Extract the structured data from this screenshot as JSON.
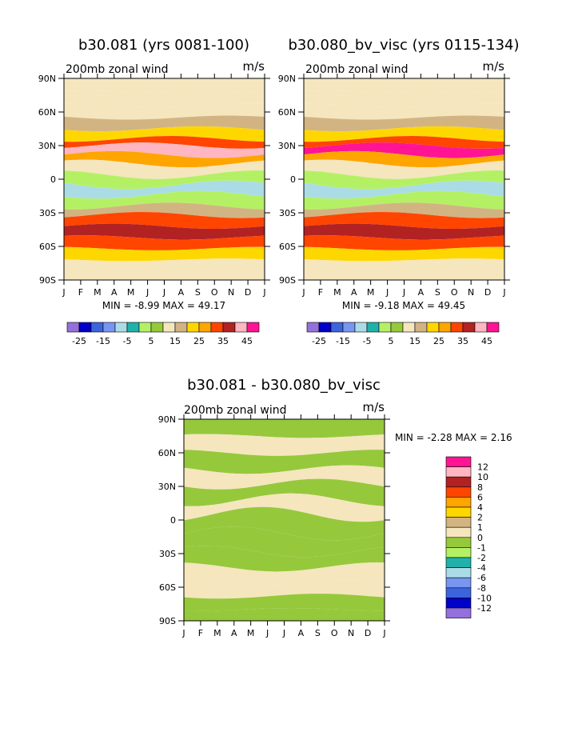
{
  "page": {
    "colors": {
      "background": "#ffffff",
      "axis": "#000000"
    }
  },
  "chart_data": [
    {
      "type": "filled-contour",
      "id": "panel1",
      "title": "b30.081 (yrs 0081-100)",
      "subtitle": "200mb zonal wind",
      "units": "m/s",
      "stats": "MIN =   -8.99 MAX =   49.17",
      "x_ticks": [
        "J",
        "F",
        "M",
        "A",
        "M",
        "J",
        "J",
        "A",
        "S",
        "O",
        "N",
        "D",
        "J"
      ],
      "y_ticks": [
        "90N",
        "60N",
        "30N",
        "0",
        "30S",
        "60S",
        "90S"
      ],
      "ylim": [
        -90,
        90
      ],
      "colorbar_labels": [
        "-25",
        "-15",
        "-5",
        "5",
        "15",
        "25",
        "35",
        "45"
      ],
      "colorbar_colors": [
        "#9370db",
        "#0000c8",
        "#3c64dc",
        "#7896f0",
        "#aadce6",
        "#20b2aa",
        "#b4f064",
        "#96c83c",
        "#f5e6be",
        "#d2b482",
        "#ffd700",
        "#ffa500",
        "#ff4500",
        "#b22222",
        "#ffb6c1",
        "#ff1493"
      ],
      "bands": [
        {
          "lat": 90,
          "value": 10
        },
        {
          "lat": 78,
          "value": 14
        },
        {
          "lat": 66,
          "value": 10
        },
        {
          "lat": 55,
          "value": 18
        },
        {
          "lat": 45,
          "value": 22
        },
        {
          "lat": 36,
          "value": 30
        },
        {
          "lat": 30,
          "value": 44
        },
        {
          "lat": 22,
          "value": 28
        },
        {
          "lat": 14,
          "value": 12
        },
        {
          "lat": 4,
          "value": 2
        },
        {
          "lat": -5,
          "value": -6
        },
        {
          "lat": -14,
          "value": 4
        },
        {
          "lat": -24,
          "value": 18
        },
        {
          "lat": -32,
          "value": 34
        },
        {
          "lat": -42,
          "value": 38
        },
        {
          "lat": -52,
          "value": 30
        },
        {
          "lat": -62,
          "value": 20
        },
        {
          "lat": -72,
          "value": 12
        },
        {
          "lat": -90,
          "value": 6
        }
      ]
    },
    {
      "type": "filled-contour",
      "id": "panel2",
      "title": "b30.080_bv_visc (yrs 0115-134)",
      "subtitle": "200mb zonal wind",
      "units": "m/s",
      "stats": "MIN =   -9.18 MAX =   49.45",
      "x_ticks": [
        "J",
        "F",
        "M",
        "A",
        "M",
        "J",
        "J",
        "A",
        "S",
        "O",
        "N",
        "D",
        "J"
      ],
      "y_ticks": [
        "90N",
        "60N",
        "30N",
        "0",
        "30S",
        "60S",
        "90S"
      ],
      "ylim": [
        -90,
        90
      ],
      "colorbar_labels": [
        "-25",
        "-15",
        "-5",
        "5",
        "15",
        "25",
        "35",
        "45"
      ],
      "colorbar_colors": [
        "#9370db",
        "#0000c8",
        "#3c64dc",
        "#7896f0",
        "#aadce6",
        "#20b2aa",
        "#b4f064",
        "#96c83c",
        "#f5e6be",
        "#d2b482",
        "#ffd700",
        "#ffa500",
        "#ff4500",
        "#b22222",
        "#ffb6c1",
        "#ff1493"
      ],
      "bands": [
        {
          "lat": 90,
          "value": 10
        },
        {
          "lat": 78,
          "value": 14
        },
        {
          "lat": 66,
          "value": 10
        },
        {
          "lat": 55,
          "value": 18
        },
        {
          "lat": 45,
          "value": 22
        },
        {
          "lat": 36,
          "value": 30
        },
        {
          "lat": 30,
          "value": 45
        },
        {
          "lat": 22,
          "value": 28
        },
        {
          "lat": 14,
          "value": 12
        },
        {
          "lat": 4,
          "value": 2
        },
        {
          "lat": -5,
          "value": -6
        },
        {
          "lat": -14,
          "value": 4
        },
        {
          "lat": -24,
          "value": 18
        },
        {
          "lat": -32,
          "value": 34
        },
        {
          "lat": -42,
          "value": 38
        },
        {
          "lat": -52,
          "value": 30
        },
        {
          "lat": -62,
          "value": 20
        },
        {
          "lat": -72,
          "value": 12
        },
        {
          "lat": -90,
          "value": 6
        }
      ]
    },
    {
      "type": "filled-contour",
      "id": "panel3",
      "title": "b30.081 - b30.080_bv_visc",
      "subtitle": "200mb zonal wind",
      "units": "m/s",
      "stats": "MIN =   -2.28 MAX =    2.16",
      "x_ticks": [
        "J",
        "F",
        "M",
        "A",
        "M",
        "J",
        "J",
        "A",
        "S",
        "O",
        "N",
        "D",
        "J"
      ],
      "y_ticks": [
        "90N",
        "60N",
        "30N",
        "0",
        "30S",
        "60S",
        "90S"
      ],
      "ylim": [
        -90,
        90
      ],
      "colorbar_labels": [
        "12",
        "10",
        "8",
        "6",
        "4",
        "2",
        "1",
        "0",
        "-1",
        "-2",
        "-4",
        "-6",
        "-8",
        "-10",
        "-12"
      ],
      "colorbar_colors": [
        "#ff1493",
        "#ffb6c1",
        "#b22222",
        "#ff4500",
        "#ffa500",
        "#ffd700",
        "#d2b482",
        "#f5e6be",
        "#96c83c",
        "#b4f064",
        "#20b2aa",
        "#aadce6",
        "#7896f0",
        "#3c64dc",
        "#0000c8",
        "#9370db"
      ],
      "bands": [
        {
          "lat": 90,
          "value": -0.5
        },
        {
          "lat": 75,
          "value": 0.5
        },
        {
          "lat": 60,
          "value": -0.5
        },
        {
          "lat": 45,
          "value": 0.5
        },
        {
          "lat": 32,
          "value": -0.5
        },
        {
          "lat": 18,
          "value": 0.5
        },
        {
          "lat": 5,
          "value": -0.5
        },
        {
          "lat": -12,
          "value": -0.5
        },
        {
          "lat": -28,
          "value": -0.5
        },
        {
          "lat": -42,
          "value": 0.5
        },
        {
          "lat": -56,
          "value": 0.5
        },
        {
          "lat": -68,
          "value": -0.5
        },
        {
          "lat": -80,
          "value": -0.5
        },
        {
          "lat": -90,
          "value": -0.5
        }
      ]
    }
  ]
}
